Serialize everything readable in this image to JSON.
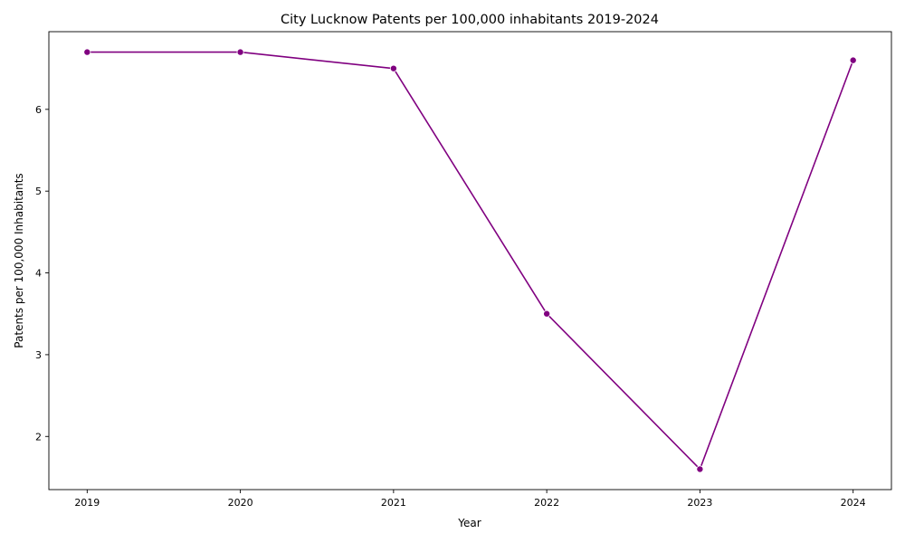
{
  "chart_data": {
    "type": "line",
    "title": "City Lucknow Patents per 100,000 inhabitants 2019-2024",
    "xlabel": "Year",
    "ylabel": "Patents per 100,000 Inhabitants",
    "x": [
      2019,
      2020,
      2021,
      2022,
      2023,
      2024
    ],
    "series": [
      {
        "values": [
          6.7,
          6.7,
          6.5,
          3.5,
          1.6,
          6.6
        ]
      }
    ],
    "xlim": [
      2018.75,
      2024.25
    ],
    "ylim": [
      1.35,
      6.95
    ],
    "xticks": [
      2019,
      2020,
      2021,
      2022,
      2023,
      2024
    ],
    "yticks": [
      2,
      3,
      4,
      5,
      6
    ],
    "grid": false,
    "color": "#800080"
  }
}
